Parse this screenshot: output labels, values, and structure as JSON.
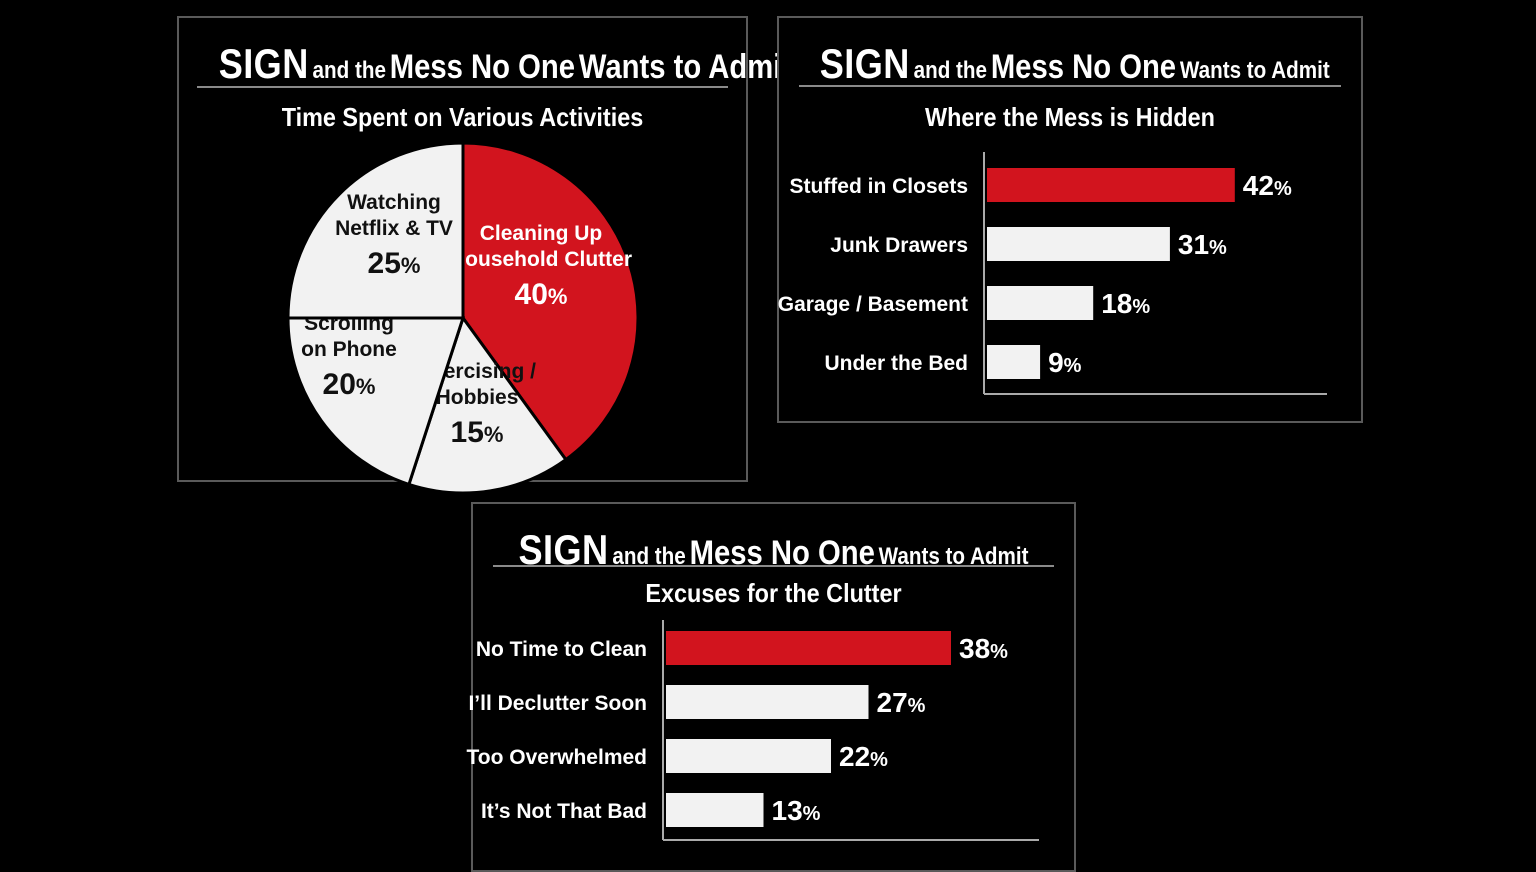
{
  "header": {
    "part1": "SIGN",
    "part2": "and the",
    "part3": "Mess No One",
    "part4": "Wants to Admit"
  },
  "colors": {
    "accent": "#d2141e",
    "neutral": "#f2f2f2",
    "background": "#000000"
  },
  "chart_data": [
    {
      "type": "pie",
      "title": "Time Spent on Various Activities",
      "categories": [
        "Cleaning Up Household Clutter",
        "Exercising / Hobbies",
        "Scrolling on Phone",
        "Watching Netflix & TV"
      ],
      "label_lines": [
        [
          "Cleaning Up",
          "Household Clutter"
        ],
        [
          "Exercising /",
          "Hobbies"
        ],
        [
          "Scrolling",
          "on Phone"
        ],
        [
          "Watching",
          "Netflix & TV"
        ]
      ],
      "values": [
        40,
        15,
        20,
        25
      ],
      "highlight_index": 0
    },
    {
      "type": "bar",
      "orientation": "horizontal",
      "title": "Where the Mess is Hidden",
      "categories": [
        "Stuffed in Closets",
        "Junk Drawers",
        "Garage / Basement",
        "Under the Bed"
      ],
      "values": [
        42,
        31,
        18,
        9
      ],
      "highlight_index": 0
    },
    {
      "type": "bar",
      "orientation": "horizontal",
      "title": "Excuses for the Clutter",
      "categories": [
        "No Time to Clean",
        "I’ll Declutter Soon",
        "Too Overwhelmed",
        "It’s Not That Bad"
      ],
      "values": [
        38,
        27,
        22,
        13
      ],
      "highlight_index": 0
    }
  ]
}
